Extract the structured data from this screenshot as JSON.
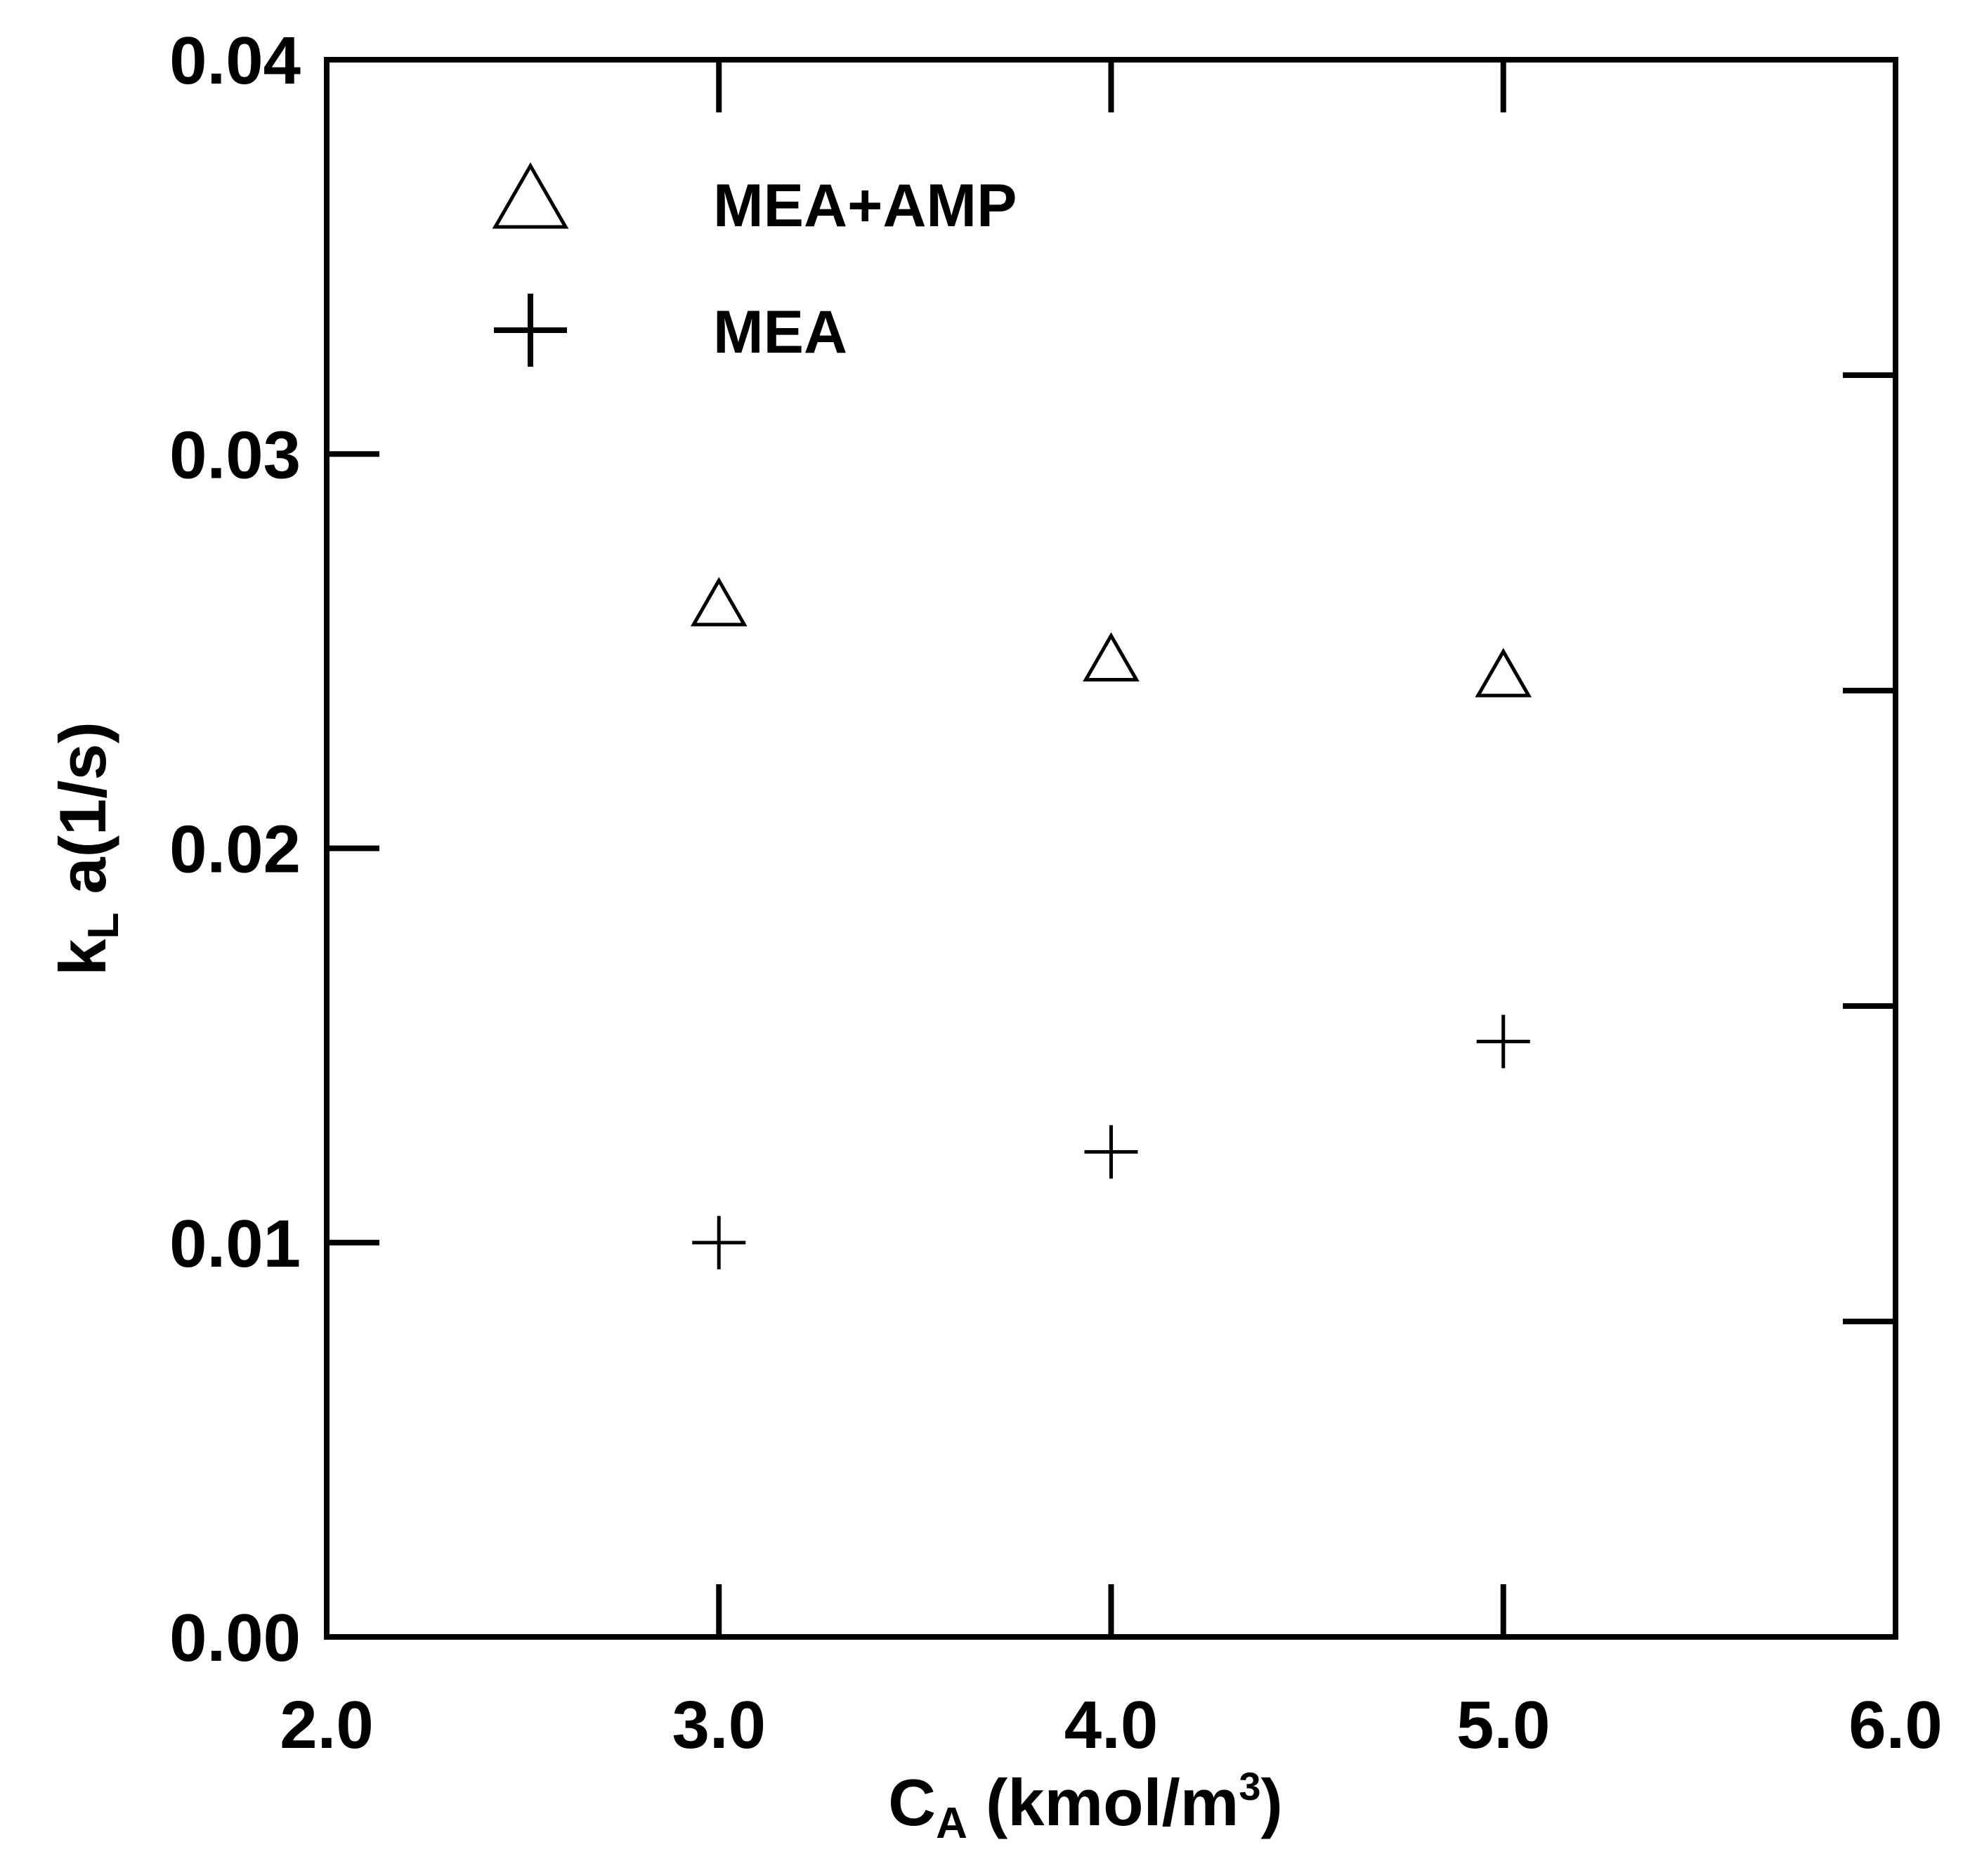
{
  "chart_data": {
    "type": "scatter",
    "title": "",
    "xlabel": {
      "main": "C",
      "sub": "A",
      "rest": " (kmol/m",
      "sup": "3",
      "close": ")"
    },
    "ylabel": {
      "main": "k",
      "sub": "L",
      "rest": " a(1/s)"
    },
    "xlim": [
      2.0,
      6.0
    ],
    "ylim": [
      0.0,
      0.04
    ],
    "x_ticks": [
      2.0,
      3.0,
      4.0,
      5.0,
      6.0
    ],
    "x_tick_labels": [
      "2.0",
      "3.0",
      "4.0",
      "5.0",
      "6.0"
    ],
    "y_ticks": [
      0.0,
      0.01,
      0.02,
      0.03,
      0.04
    ],
    "y_tick_labels": [
      "0.00",
      "0.01",
      "0.02",
      "0.03",
      "0.04"
    ],
    "right_minor_ticks": [
      0.008,
      0.016,
      0.024,
      0.032
    ],
    "grid": false,
    "legend_position": "top-left",
    "series": [
      {
        "name": "MEA+AMP",
        "marker": "triangle-open",
        "x": [
          3.0,
          4.0,
          5.0
        ],
        "y": [
          0.0261,
          0.0247,
          0.0243
        ]
      },
      {
        "name": "MEA",
        "marker": "plus",
        "x": [
          3.0,
          4.0,
          5.0
        ],
        "y": [
          0.01,
          0.0123,
          0.0151
        ]
      }
    ],
    "color": "#000000"
  }
}
